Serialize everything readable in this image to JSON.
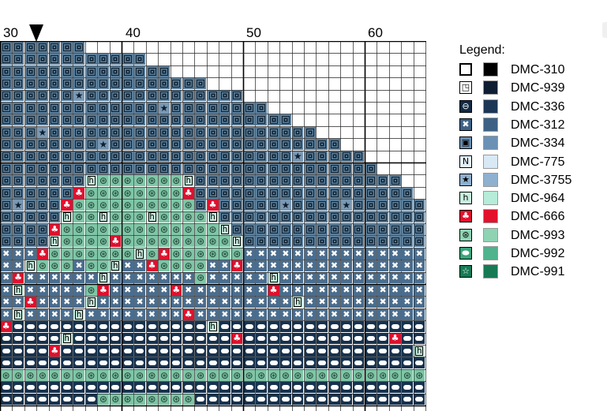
{
  "ruler": {
    "labels": [
      "30",
      "40",
      "50",
      "60"
    ],
    "marker_icon": "down-triangle-icon"
  },
  "legend": {
    "title": "Legend:",
    "items": [
      {
        "symbol": "hollow-square-icon",
        "code": "DMC-310",
        "color": "#000000"
      },
      {
        "symbol": "corner-square-icon",
        "code": "DMC-939",
        "color": "#0f1d33"
      },
      {
        "symbol": "oval-icon",
        "code": "DMC-336",
        "color": "#1c3656"
      },
      {
        "symbol": "x-cross-icon",
        "code": "DMC-312",
        "color": "#3d6185"
      },
      {
        "symbol": "nested-square-icon",
        "code": "DMC-334",
        "color": "#6b91b5"
      },
      {
        "symbol": "letter-n-icon",
        "code": "DMC-775",
        "color": "#d8e9f5"
      },
      {
        "symbol": "star-icon",
        "code": "DMC-3755",
        "color": "#8fb0cf"
      },
      {
        "symbol": "letter-h-icon",
        "code": "DMC-964",
        "color": "#b6ecd9"
      },
      {
        "symbol": "clover-icon",
        "code": "DMC-666",
        "color": "#e3102c"
      },
      {
        "symbol": "wheel-icon",
        "code": "DMC-993",
        "color": "#8fd3b3"
      },
      {
        "symbol": "pill-icon",
        "code": "DMC-992",
        "color": "#4fb38c"
      },
      {
        "symbol": "star-box-icon",
        "code": "DMC-991",
        "color": "#177a55"
      }
    ]
  },
  "pattern": {
    "rows": [
      "SSSSSSS........................................",
      "SSSSSSSSSSSS...................................",
      "SSSSSSSSSSSSSS.................................",
      "SSSSSSSSSSSSSSSSS..............................",
      "SSSSSS*SSSSSSSSSSSSS...........................",
      "SSSSSSSSSSSSS*SSSSSSSS.........................",
      "SSSSSSSSSSSSSSSSSSSSSSSS.......................",
      "SSS*SSSSSSSSSSSSSSSSSSSSSS.....................",
      "SSSSSSSS*SSSSSSSSSSSSSSSSSSS...................",
      "SSSSSSSSSSSSSSSSSSSSSSSS*SSSSS.................",
      "SSSSSSSSSSSSSSSSSSSSSSSSSSSSSSS................",
      "SSSSSSShWWWWWWWhSSSSSSSSSSSSSSSSS..............",
      "SSSSSScWWWWWWWWcSSSSSSSSSSSSSSSSSS.............",
      "S*SSScWWWWWWWWWWScSSSSS*SSSS*SSSSSS............",
      "SSSSShWWhWWWhWWWWhSSSSSSSSSSSSSSSSSS...........",
      "SSSScWWWWWWWWWWWWWhSSSSSSSSSSSSSSSSS...........",
      "SSSShWWWWcWWWWWWWWWhSSSSSSSSSSSSSSSSS..........",
      "XXXcWWWWWWWhWcWWWWWWXXXXXXXXXXXXXXXXXX.........",
      "XXhWWWXWWhXXcWWWWXXcXXXXXXXXXXXXXXXXXXX........",
      "XcXXXXXXhXXXXXXXWXXXXXhXXXXXXXXXXXXXXXX........",
      "XhXXXXXWcXXXXXcXXXXXXXcXXXXXXXXXXXXXXXXX.......",
      "XXcXXXXhXXXXXXXXXXXXXXXXhXXXXXXXXXXXXXXXX......",
      "XhXXXXhXXXXXXXXcXXXXXXXXXXXXXXXXXXXXXXXXX......",
      "cOOOOOOOOOOOOOOOOhOOOOOOOOOOOOOOOOOOOOOOOO.....",
      "OOOOOhOOOOOOOOOOOOOcOOOOOOOOOOOOcOOOOOOOOO.....",
      "OOOOcOOOOOOOOOOOOOOOOOOOOOOOOOOOOOhOOOOOOOO....",
      "OOOOOOOOOOOOOOOOOOOOOOOOOOOOOOOOOOOOcOOOOOOO...",
      "WWWWWWWWWWWWWWWWWWWWWWWWWWWWWWWWWWWWWWWWWWWWW..",
      "OOOOOOOOOOOOOOOOOOOOOOOOOOOOOOOOOOOOOOOOOOOOO..",
      "OOOOOOOOWWWWWWWWOOOOOOOOOOOOOOOOOOOOOOOOOOOOOO."
    ]
  }
}
